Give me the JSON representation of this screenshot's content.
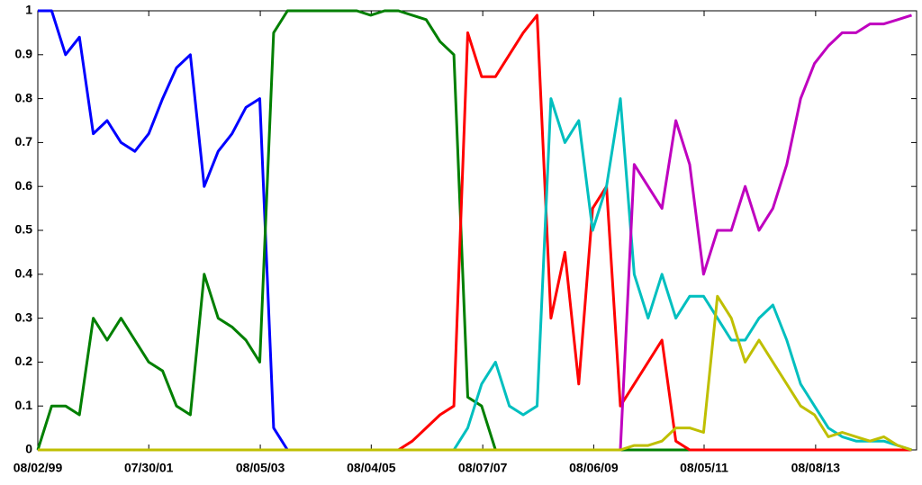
{
  "chart_data": {
    "type": "line",
    "x": [
      1999.58,
      1999.83,
      2000.08,
      2000.33,
      2000.58,
      2000.83,
      2001.08,
      2001.33,
      2001.58,
      2001.83,
      2002.08,
      2002.33,
      2002.58,
      2002.83,
      2003.08,
      2003.33,
      2003.58,
      2003.83,
      2004.08,
      2004.33,
      2004.58,
      2004.83,
      2005.08,
      2005.33,
      2005.58,
      2005.83,
      2006.08,
      2006.33,
      2006.58,
      2006.83,
      2007.08,
      2007.33,
      2007.58,
      2007.83,
      2008.08,
      2008.33,
      2008.58,
      2008.83,
      2009.08,
      2009.33,
      2009.58,
      2009.83,
      2010.08,
      2010.33,
      2010.58,
      2010.83,
      2011.08,
      2011.33,
      2011.58,
      2011.83,
      2012.08,
      2012.33,
      2012.58,
      2012.83,
      2013.08,
      2013.33,
      2013.58,
      2013.83,
      2014.08,
      2014.33,
      2014.58,
      2014.83,
      2015.08,
      2015.33
    ],
    "series": [
      {
        "color": "#0000ff",
        "values": [
          1,
          1,
          0.9,
          0.94,
          0.72,
          0.75,
          0.7,
          0.68,
          0.72,
          0.8,
          0.87,
          0.9,
          0.6,
          0.68,
          0.72,
          0.78,
          0.8,
          0.05,
          0,
          0,
          0,
          0,
          0,
          0,
          0,
          0,
          0,
          0,
          0,
          0,
          0,
          0,
          0,
          0,
          0,
          0,
          0,
          0,
          0,
          0,
          0,
          0,
          0,
          0,
          0,
          0,
          0,
          0,
          0,
          0,
          0,
          0,
          0,
          0,
          0,
          0,
          0,
          0,
          0,
          0,
          0,
          0,
          0,
          0
        ]
      },
      {
        "color": "#007f00",
        "values": [
          0,
          0.1,
          0.1,
          0.08,
          0.3,
          0.25,
          0.3,
          0.25,
          0.2,
          0.18,
          0.1,
          0.08,
          0.4,
          0.3,
          0.28,
          0.25,
          0.2,
          0.95,
          1,
          1,
          1,
          1,
          1,
          1,
          0.99,
          1,
          1,
          0.99,
          0.98,
          0.93,
          0.9,
          0.12,
          0.1,
          0,
          0,
          0,
          0,
          0,
          0,
          0,
          0,
          0,
          0,
          0,
          0,
          0,
          0,
          0,
          0,
          0,
          0,
          0,
          0,
          0,
          0,
          0,
          0,
          0,
          0,
          0,
          0,
          0,
          0,
          0
        ]
      },
      {
        "color": "#ff0000",
        "values": [
          0,
          0,
          0,
          0,
          0,
          0,
          0,
          0,
          0,
          0,
          0,
          0,
          0,
          0,
          0,
          0,
          0,
          0,
          0,
          0,
          0,
          0,
          0,
          0,
          0,
          0,
          0,
          0.02,
          0.05,
          0.08,
          0.1,
          0.95,
          0.85,
          0.85,
          0.9,
          0.95,
          0.99,
          0.3,
          0.45,
          0.15,
          0.55,
          0.6,
          0.1,
          0.15,
          0.2,
          0.25,
          0.02,
          0,
          0,
          0,
          0,
          0,
          0,
          0,
          0,
          0,
          0,
          0,
          0,
          0,
          0,
          0,
          0,
          0
        ]
      },
      {
        "color": "#00bfbf",
        "values": [
          0,
          0,
          0,
          0,
          0,
          0,
          0,
          0,
          0,
          0,
          0,
          0,
          0,
          0,
          0,
          0,
          0,
          0,
          0,
          0,
          0,
          0,
          0,
          0,
          0,
          0,
          0,
          0,
          0,
          0,
          0,
          0.05,
          0.15,
          0.2,
          0.1,
          0.08,
          0.1,
          0.8,
          0.7,
          0.75,
          0.5,
          0.6,
          0.8,
          0.4,
          0.3,
          0.4,
          0.3,
          0.35,
          0.35,
          0.3,
          0.25,
          0.25,
          0.3,
          0.33,
          0.25,
          0.15,
          0.1,
          0.05,
          0.03,
          0.02,
          0.02,
          0.02,
          0.01,
          0
        ]
      },
      {
        "color": "#bf00bf",
        "values": [
          0,
          0,
          0,
          0,
          0,
          0,
          0,
          0,
          0,
          0,
          0,
          0,
          0,
          0,
          0,
          0,
          0,
          0,
          0,
          0,
          0,
          0,
          0,
          0,
          0,
          0,
          0,
          0,
          0,
          0,
          0,
          0,
          0,
          0,
          0,
          0,
          0,
          0,
          0,
          0,
          0,
          0,
          0,
          0.65,
          0.6,
          0.55,
          0.75,
          0.65,
          0.4,
          0.5,
          0.5,
          0.6,
          0.5,
          0.55,
          0.65,
          0.8,
          0.88,
          0.92,
          0.95,
          0.95,
          0.97,
          0.97,
          0.98,
          0.99
        ]
      },
      {
        "color": "#bfbf00",
        "values": [
          0,
          0,
          0,
          0,
          0,
          0,
          0,
          0,
          0,
          0,
          0,
          0,
          0,
          0,
          0,
          0,
          0,
          0,
          0,
          0,
          0,
          0,
          0,
          0,
          0,
          0,
          0,
          0,
          0,
          0,
          0,
          0,
          0,
          0,
          0,
          0,
          0,
          0,
          0,
          0,
          0,
          0,
          0,
          0.01,
          0.01,
          0.02,
          0.05,
          0.05,
          0.04,
          0.35,
          0.3,
          0.2,
          0.25,
          0.2,
          0.15,
          0.1,
          0.08,
          0.03,
          0.04,
          0.03,
          0.02,
          0.03,
          0.01,
          0
        ]
      }
    ],
    "xlim": [
      1999.58,
      2015.42
    ],
    "xticks": [
      {
        "value": 1999.58,
        "label": "08/02/99"
      },
      {
        "value": 2001.58,
        "label": "07/30/01"
      },
      {
        "value": 2003.59,
        "label": "08/05/03"
      },
      {
        "value": 2005.59,
        "label": "08/04/05"
      },
      {
        "value": 2007.6,
        "label": "08/07/07"
      },
      {
        "value": 2009.6,
        "label": "08/06/09"
      },
      {
        "value": 2011.59,
        "label": "08/05/11"
      },
      {
        "value": 2013.6,
        "label": "08/08/13"
      }
    ],
    "ylim": [
      0,
      1
    ],
    "yticks": [
      0,
      0.1,
      0.2,
      0.3,
      0.4,
      0.5,
      0.6,
      0.7,
      0.8,
      0.9,
      1
    ]
  }
}
